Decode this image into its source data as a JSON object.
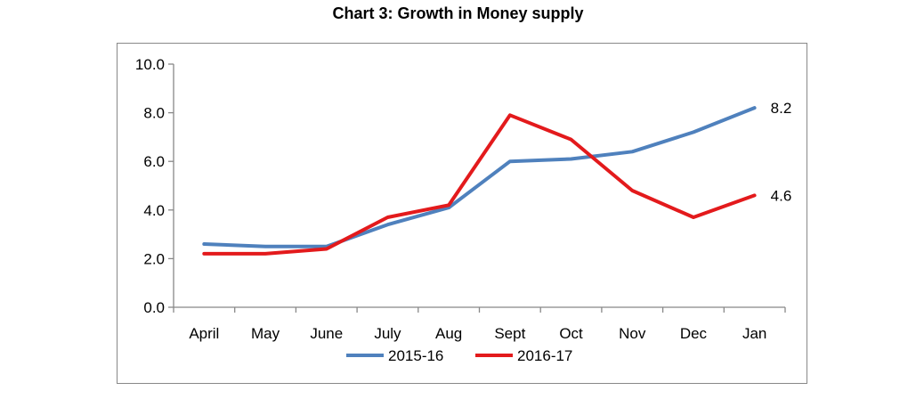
{
  "chart_data": {
    "type": "line",
    "title": "Chart 3: Growth in Money supply",
    "xlabel": "",
    "ylabel": "",
    "categories": [
      "April",
      "May",
      "June",
      "July",
      "Aug",
      "Sept",
      "Oct",
      "Nov",
      "Dec",
      "Jan"
    ],
    "ylim": [
      0,
      10
    ],
    "y_ticks": [
      "0.0",
      "2.0",
      "4.0",
      "6.0",
      "8.0",
      "10.0"
    ],
    "grid": false,
    "legend_position": "bottom",
    "series": [
      {
        "name": "2015-16",
        "color": "#4f81bd",
        "values": [
          2.6,
          2.5,
          2.5,
          3.4,
          4.1,
          6.0,
          6.1,
          6.4,
          7.2,
          8.2
        ],
        "end_label": "8.2"
      },
      {
        "name": "2016-17",
        "color": "#e31a1c",
        "values": [
          2.2,
          2.2,
          2.4,
          3.7,
          4.2,
          7.9,
          6.9,
          4.8,
          3.7,
          4.6
        ],
        "end_label": "4.6"
      }
    ]
  }
}
